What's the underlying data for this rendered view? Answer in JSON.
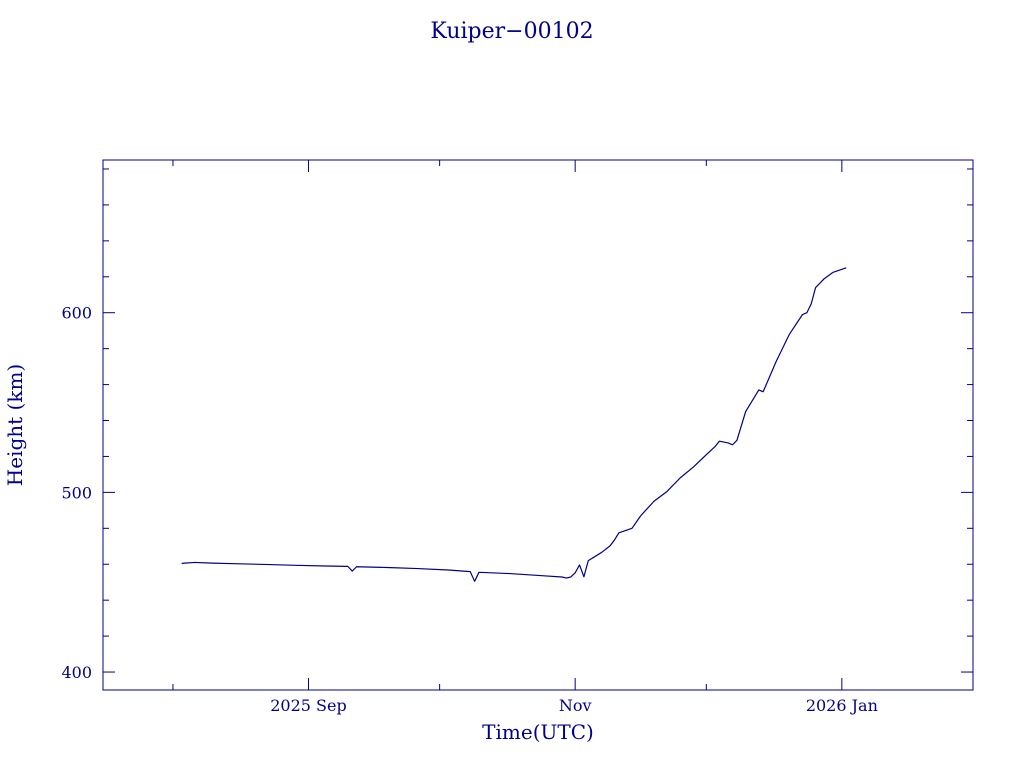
{
  "chart_data": {
    "type": "line",
    "title": "Kuiper−00102",
    "xlabel": "Time(UTC)",
    "ylabel": "Height (km)",
    "x_axis": {
      "type": "date",
      "range": [
        "2025-07-16",
        "2026-01-31"
      ],
      "major_ticks": [
        {
          "date": "2025-09-01",
          "label": "2025 Sep"
        },
        {
          "date": "2025-11-01",
          "label": "Nov"
        },
        {
          "date": "2026-01-01",
          "label": "2026 Jan"
        }
      ],
      "minor_ticks": [
        "2025-08-01",
        "2025-10-01",
        "2025-12-01"
      ]
    },
    "y_axis": {
      "range": [
        390,
        685
      ],
      "major_ticks": [
        400,
        500,
        600
      ],
      "minor_step": 20
    },
    "grid": false,
    "legend": "none",
    "colors": {
      "ink": "#00008b",
      "background": "#ffffff"
    },
    "series": [
      {
        "points": [
          [
            "2025-08-03",
            460.5
          ],
          [
            "2025-08-06",
            461.0
          ],
          [
            "2025-08-10",
            460.6
          ],
          [
            "2025-08-15",
            460.3
          ],
          [
            "2025-08-22",
            459.9
          ],
          [
            "2025-08-29",
            459.4
          ],
          [
            "2025-09-05",
            459.0
          ],
          [
            "2025-09-10",
            458.8
          ],
          [
            "2025-09-11",
            456.2
          ],
          [
            "2025-09-12",
            458.6
          ],
          [
            "2025-09-19",
            458.2
          ],
          [
            "2025-09-26",
            457.6
          ],
          [
            "2025-10-03",
            456.8
          ],
          [
            "2025-10-08",
            455.9
          ],
          [
            "2025-10-09",
            450.5
          ],
          [
            "2025-10-10",
            455.5
          ],
          [
            "2025-10-17",
            454.8
          ],
          [
            "2025-10-24",
            453.7
          ],
          [
            "2025-10-29",
            452.9
          ],
          [
            "2025-10-30",
            452.3
          ],
          [
            "2025-10-31",
            452.9
          ],
          [
            "2025-11-01",
            455.2
          ],
          [
            "2025-11-02",
            459.6
          ],
          [
            "2025-11-03",
            453.0
          ],
          [
            "2025-11-04",
            462.0
          ],
          [
            "2025-11-07",
            466.5
          ],
          [
            "2025-11-09",
            470.3
          ],
          [
            "2025-11-10",
            473.5
          ],
          [
            "2025-11-11",
            477.5
          ],
          [
            "2025-11-14",
            480.0
          ],
          [
            "2025-11-16",
            487.0
          ],
          [
            "2025-11-19",
            495.0
          ],
          [
            "2025-11-22",
            500.5
          ],
          [
            "2025-11-25",
            508.0
          ],
          [
            "2025-11-28",
            514.0
          ],
          [
            "2025-12-01",
            521.0
          ],
          [
            "2025-12-03",
            525.5
          ],
          [
            "2025-12-04",
            528.5
          ],
          [
            "2025-12-06",
            527.5
          ],
          [
            "2025-12-07",
            526.5
          ],
          [
            "2025-12-08",
            529.0
          ],
          [
            "2025-12-10",
            545.0
          ],
          [
            "2025-12-12",
            553.0
          ],
          [
            "2025-12-13",
            557.0
          ],
          [
            "2025-12-14",
            556.0
          ],
          [
            "2025-12-17",
            573.0
          ],
          [
            "2025-12-20",
            588.0
          ],
          [
            "2025-12-23",
            599.0
          ],
          [
            "2025-12-24",
            600.0
          ],
          [
            "2025-12-25",
            605.0
          ],
          [
            "2025-12-26",
            614.0
          ],
          [
            "2025-12-28",
            619.0
          ],
          [
            "2025-12-30",
            622.5
          ],
          [
            "2026-01-02",
            625.0
          ]
        ]
      }
    ]
  }
}
